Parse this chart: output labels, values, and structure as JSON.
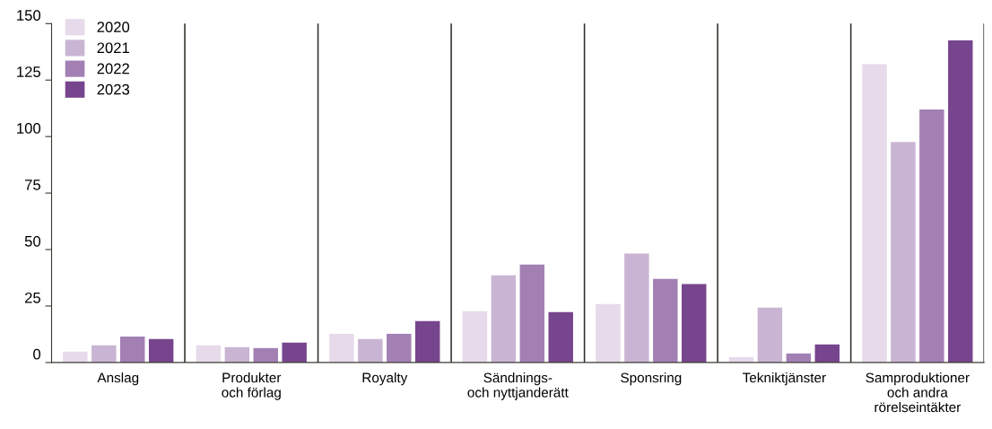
{
  "chart_data": {
    "type": "bar",
    "categories": [
      "Anslag",
      "Produkter\noch förlag",
      "Royalty",
      "Sändnings-\noch nyttjanderätt",
      "Sponsring",
      "Tekniktjänster",
      "Samproduktioner\noch andra\nrörelseintäkter"
    ],
    "series": [
      {
        "name": "2020",
        "color": "#e7daeb",
        "values": [
          4.8,
          7.6,
          12.7,
          22.7,
          25.9,
          2.4,
          132
        ]
      },
      {
        "name": "2021",
        "color": "#c9b5d3",
        "values": [
          7.6,
          6.8,
          10.4,
          38.6,
          48.2,
          24.3,
          97.6
        ]
      },
      {
        "name": "2022",
        "color": "#a380b4",
        "values": [
          11.5,
          6.4,
          12.7,
          43.4,
          37,
          4,
          112
        ]
      },
      {
        "name": "2023",
        "color": "#77458d",
        "values": [
          10.4,
          8.8,
          18.3,
          22.3,
          34.7,
          8,
          142.6
        ]
      }
    ],
    "ylim": [
      0,
      150
    ],
    "yticks": [
      0,
      25,
      50,
      75,
      100,
      125,
      150
    ],
    "grid": "x",
    "legend": "top left"
  }
}
